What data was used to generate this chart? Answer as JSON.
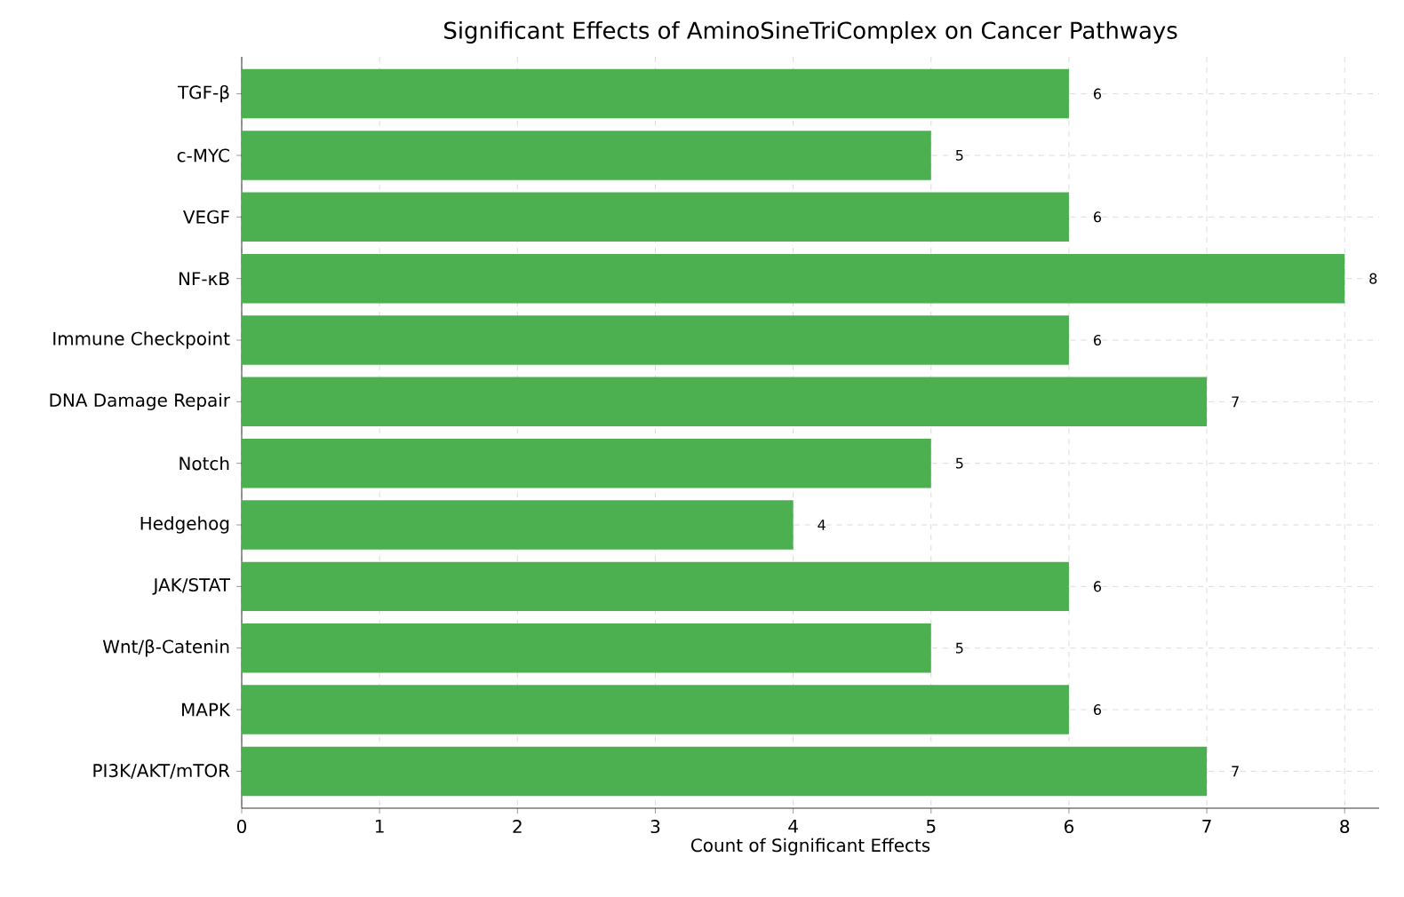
{
  "chart_data": {
    "type": "bar",
    "orientation": "horizontal",
    "title": "Significant Effects of AminoSineTriComplex on Cancer Pathways",
    "xlabel": "Count of Significant Effects",
    "categories": [
      "TGF-β",
      "c-MYC",
      "VEGF",
      "NF-κB",
      "Immune Checkpoint",
      "DNA Damage Repair",
      "Notch",
      "Hedgehog",
      "JAK/STAT",
      "Wnt/β-Catenin",
      "MAPK",
      "PI3K/AKT/mTOR"
    ],
    "values": [
      6,
      5,
      6,
      8,
      6,
      7,
      5,
      4,
      6,
      5,
      6,
      7
    ],
    "color": "#4caf50",
    "xlim": [
      0,
      8.25
    ],
    "xticks": [
      0,
      1,
      2,
      3,
      4,
      5,
      6,
      7,
      8
    ],
    "grid": true,
    "data_labels": true
  }
}
